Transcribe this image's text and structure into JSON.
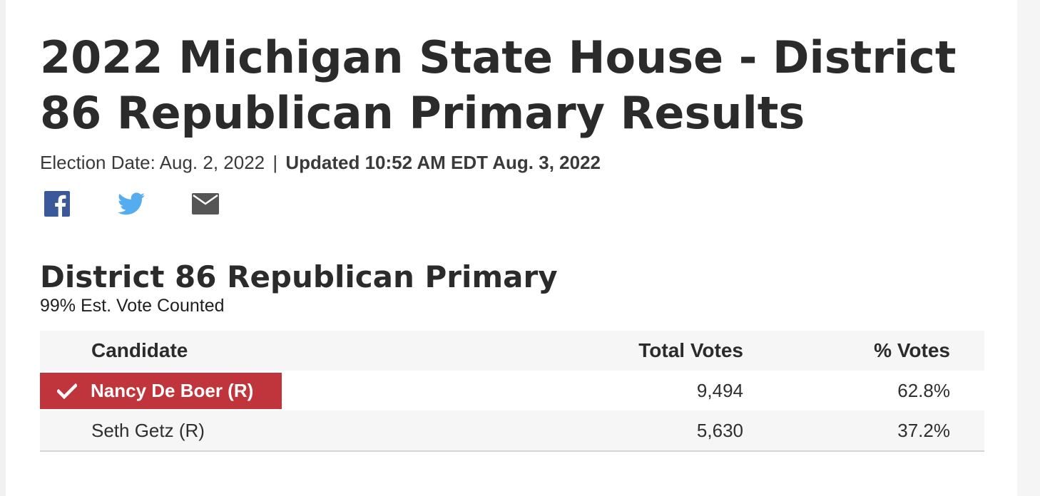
{
  "page": {
    "title": "2022 Michigan State House - District 86 Republican Primary Results",
    "election_date_label": "Election Date: Aug. 2, 2022",
    "separator": "|",
    "updated_label": "Updated 10:52 AM EDT Aug. 3, 2022"
  },
  "share": [
    {
      "name": "facebook",
      "icon": "facebook-icon",
      "color": "#3b5998"
    },
    {
      "name": "twitter",
      "icon": "twitter-icon",
      "color": "#55acee"
    },
    {
      "name": "email",
      "icon": "mail-icon",
      "color": "#555555"
    }
  ],
  "race": {
    "title": "District 86 Republican Primary",
    "reporting": "99% Est. Vote Counted"
  },
  "table": {
    "headers": {
      "candidate": "Candidate",
      "total_votes": "Total Votes",
      "pct_votes": "% Votes"
    },
    "rows": [
      {
        "candidate": "Nancy De Boer (R)",
        "votes": "9,494",
        "pct": "62.8%",
        "winner": true
      },
      {
        "candidate": "Seth Getz (R)",
        "votes": "5,630",
        "pct": "37.2%",
        "winner": false
      }
    ]
  },
  "colors": {
    "winner": "#c0353b",
    "header_bg": "#f6f6f6",
    "text": "#2b2b2b"
  }
}
